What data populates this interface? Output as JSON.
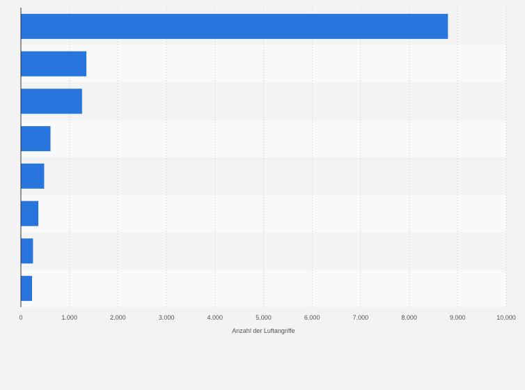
{
  "chart_data": {
    "type": "bar",
    "orientation": "horizontal",
    "categories": [
      "",
      "",
      "",
      "",
      "",
      "",
      "",
      ""
    ],
    "values": [
      8800,
      1350,
      1260,
      610,
      480,
      360,
      250,
      230
    ],
    "xlabel": "Anzahl der Luftangriffe",
    "ylabel": "",
    "xlim": [
      0,
      10000
    ],
    "x_ticks": [
      0,
      1000,
      2000,
      3000,
      4000,
      5000,
      6000,
      7000,
      8000,
      9000,
      10000
    ],
    "x_tick_labels": [
      "0",
      "1.000",
      "2.000",
      "3.000",
      "4.000",
      "5.000",
      "6.000",
      "7.000",
      "8.000",
      "9.000",
      "10.000"
    ],
    "grid": true,
    "colors": {
      "bar": "#2876dd",
      "band_light": "#f9f9f9",
      "band_dark": "#f3f3f3",
      "grid": "#dcdcdc",
      "axis": "#333333"
    }
  }
}
